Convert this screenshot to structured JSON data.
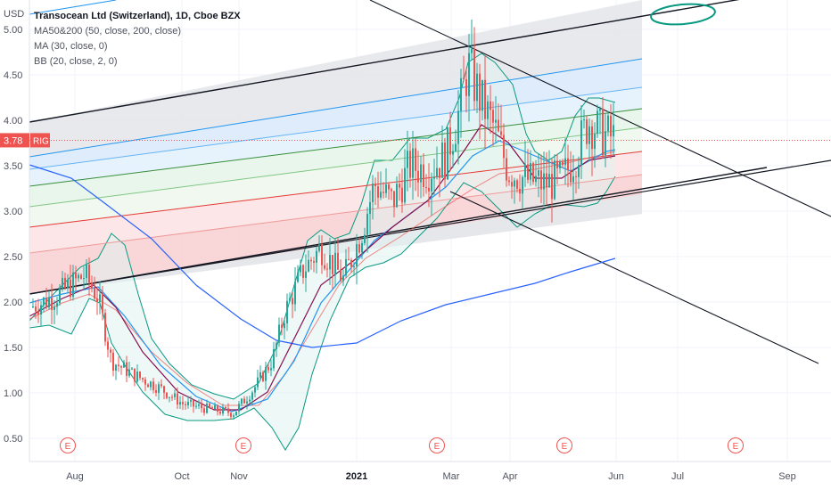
{
  "legend": {
    "title": "Transocean Ltd (Switzerland), 1D, Cboe BZX",
    "indicators": [
      "MA50&200 (50, close, 200, close)",
      "MA (30, close, 0)",
      "BB (20, close, 2, 0)"
    ]
  },
  "currency_label": "USD",
  "price_tag": {
    "value": "3.78",
    "symbol": "RIG",
    "color": "#f23645"
  },
  "earnings_marker": "E",
  "colors": {
    "up": "#26a69a",
    "down": "#ef5350",
    "ma50": "#880e4f",
    "ma200": "#2962ff",
    "ma30": "#2196f3",
    "bb": "#089981",
    "bb_fill": "#e0f2f1",
    "band_line": "#000000"
  },
  "chart_data": {
    "type": "line",
    "title": "Transocean Ltd (Switzerland), 1D, Cboe BZX",
    "ylim": [
      0.4,
      5.3
    ],
    "y_ticks": [
      "5.00",
      "4.50",
      "4.00",
      "3.50",
      "3.00",
      "2.50",
      "2.00",
      "1.50",
      "1.00",
      "0.50"
    ],
    "x_ticks": [
      "Aug",
      "Oct",
      "Nov",
      "2021",
      "Mar",
      "Apr",
      "Jun",
      "Jul",
      "Sep"
    ],
    "last_price": 3.78,
    "earnings_dates": [
      "2020-08-03",
      "2020-11-02",
      "2021-03-01",
      "2021-05-03",
      "2021-08-02"
    ],
    "series": [
      {
        "name": "RIG",
        "x": [
          "2020-07",
          "2020-08",
          "2020-09",
          "2020-10",
          "2020-11",
          "2020-12",
          "2021-01",
          "2021-02",
          "2021-03",
          "2021-04",
          "2021-05",
          "2021-06"
        ],
        "values": [
          1.95,
          2.2,
          1.2,
          0.85,
          0.75,
          2.3,
          3.0,
          3.3,
          4.7,
          3.4,
          3.5,
          3.78
        ]
      },
      {
        "name": "MA50&200",
        "values": [
          1.6,
          1.9,
          2.1,
          2.0,
          1.6,
          1.25,
          1.4,
          1.8,
          2.1,
          2.35,
          2.45
        ]
      },
      {
        "name": "MA (30, close, 0)",
        "values": [
          3.5,
          3.1,
          2.5,
          1.6,
          1.5,
          2.4,
          3.4,
          3.5,
          3.3,
          3.4,
          3.7
        ]
      }
    ]
  }
}
